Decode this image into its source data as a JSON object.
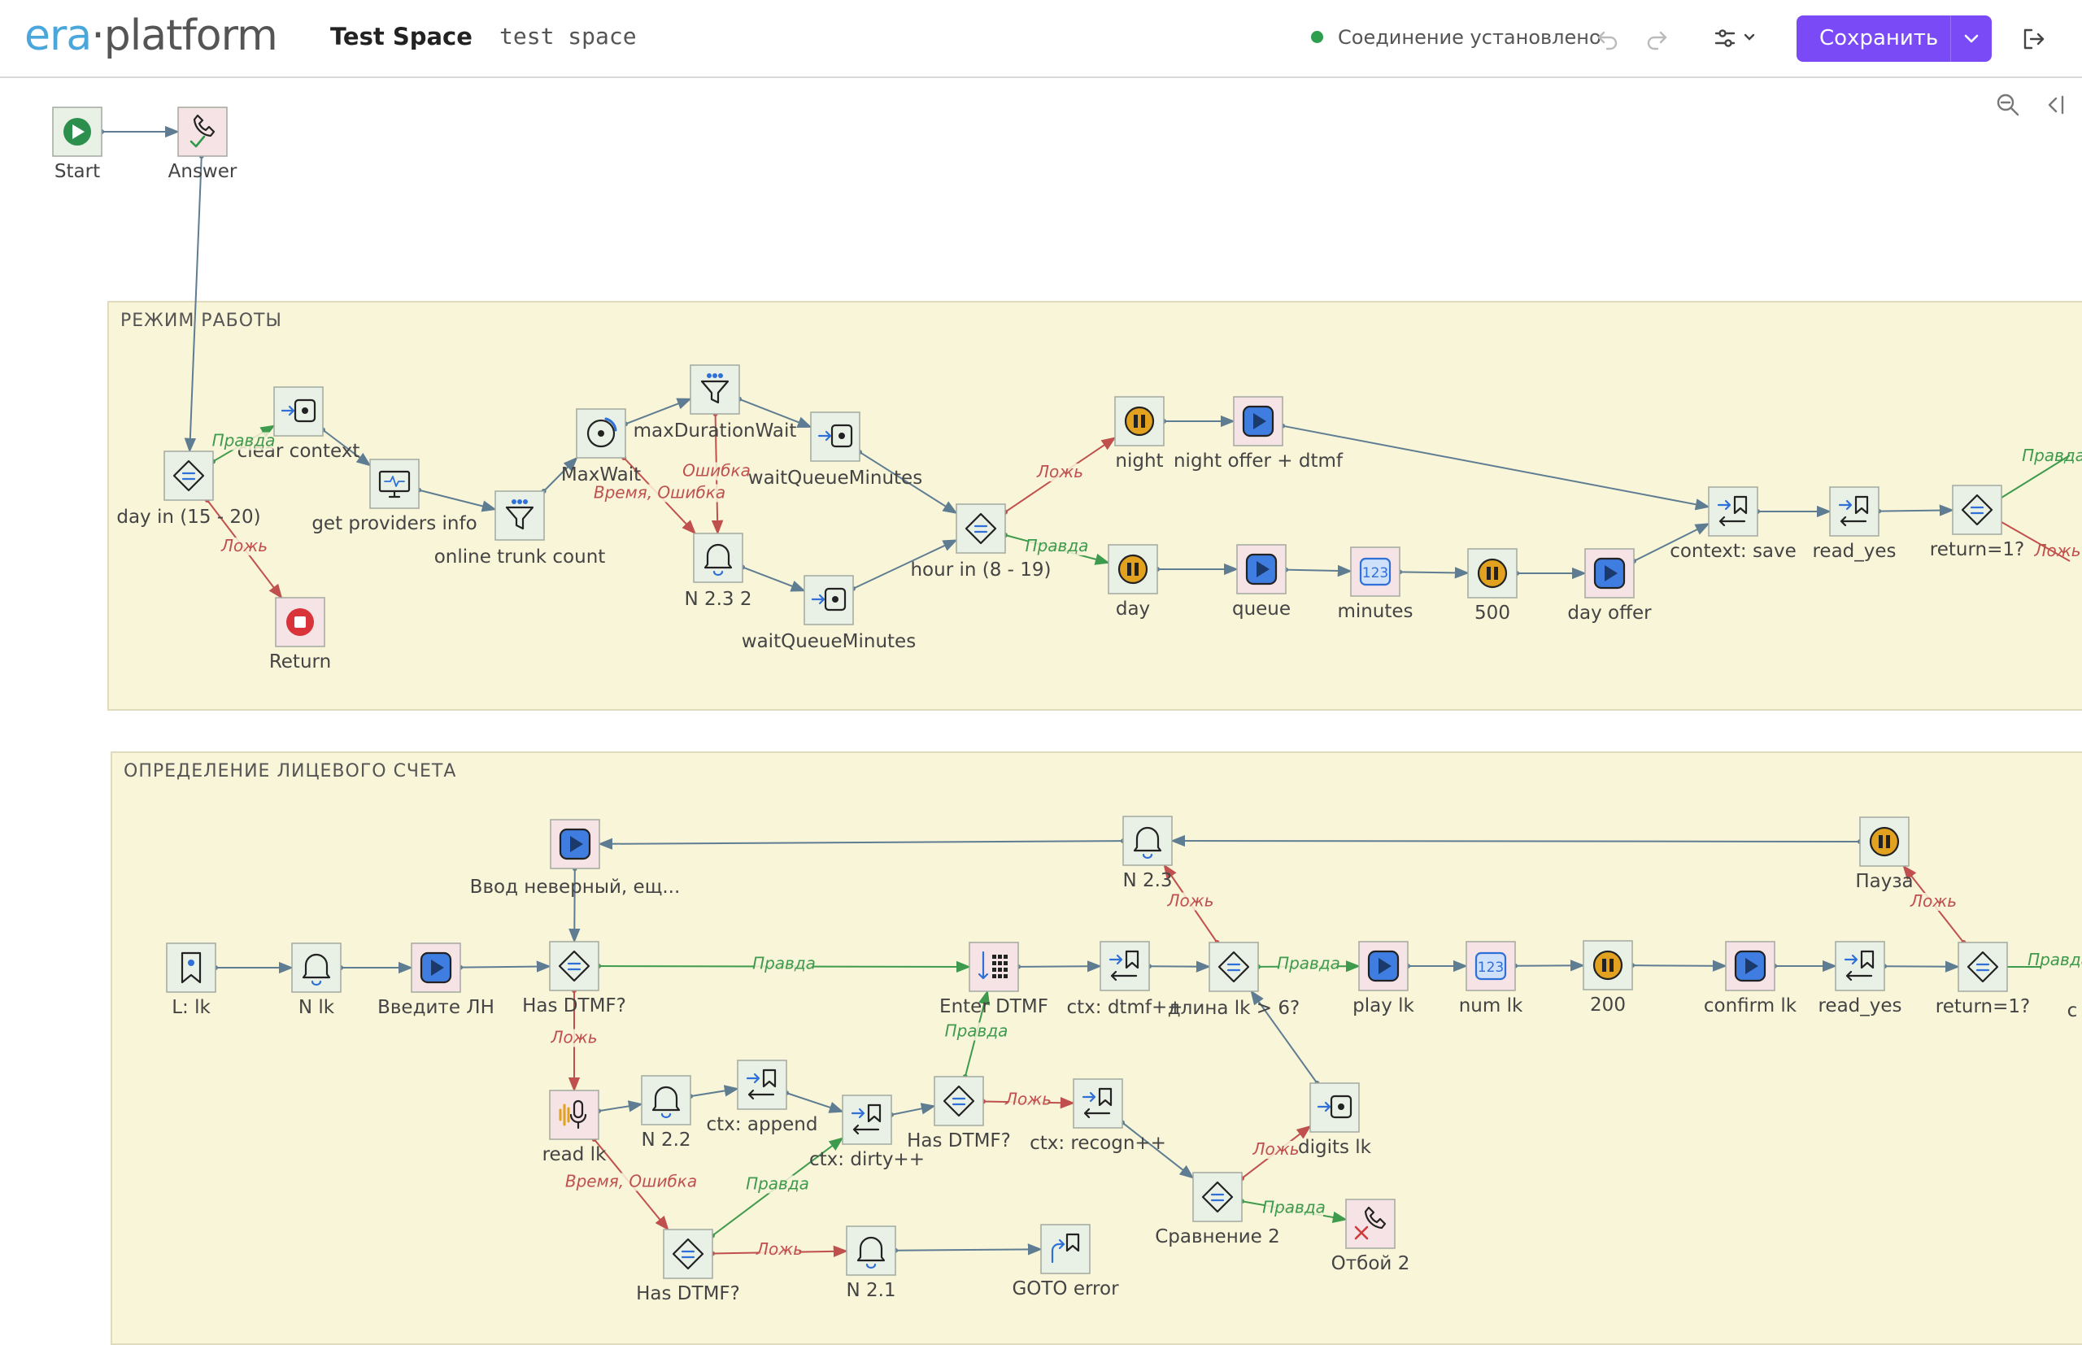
{
  "header": {
    "logo_part1": "era",
    "logo_sep": "·",
    "logo_part2": "platform",
    "title": "Test Space",
    "subtitle": "test space",
    "status_text": "Соединение установлено",
    "save_label": "Сохранить"
  },
  "zones": {
    "work_mode": "РЕЖИМ РАБОТЫ",
    "account": "ОПРЕДЕЛЕНИЕ ЛИЦЕВОГО СЧЕТА"
  },
  "colors": {
    "edge": "#5f7d92",
    "true": "#3e9a4c",
    "false": "#c0504d",
    "accent": "#7a4af7",
    "zone": "#f9f5d9"
  },
  "nodes": [
    {
      "id": "start",
      "label": "Start",
      "icon": "play-circle-icon"
    },
    {
      "id": "answer",
      "label": "Answer",
      "icon": "phone-check-icon"
    },
    {
      "id": "day1520",
      "label": "day in (15 - 20)",
      "icon": "condition-icon"
    },
    {
      "id": "clearctx",
      "label": "clear context",
      "icon": "assign-icon"
    },
    {
      "id": "return",
      "label": "Return",
      "icon": "stop-icon"
    },
    {
      "id": "getprov",
      "label": "get providers info",
      "icon": "monitor-icon"
    },
    {
      "id": "onlinetrunk",
      "label": "online trunk count",
      "icon": "filter-icon"
    },
    {
      "id": "maxwait",
      "label": "MaxWait",
      "icon": "refresh-icon"
    },
    {
      "id": "maxdur",
      "label": "maxDurationWait",
      "icon": "filter-icon"
    },
    {
      "id": "waitq1",
      "label": "waitQueueMinutes",
      "icon": "assign-icon"
    },
    {
      "id": "n232",
      "label": "N 2.3 2",
      "icon": "bell-icon"
    },
    {
      "id": "waitq2",
      "label": "waitQueueMinutes",
      "icon": "assign-icon"
    },
    {
      "id": "hour",
      "label": "hour in (8 - 19)",
      "icon": "condition-icon"
    },
    {
      "id": "night",
      "label": "night",
      "icon": "pause-icon"
    },
    {
      "id": "nightoffer",
      "label": "night offer + dtmf",
      "icon": "play-icon"
    },
    {
      "id": "day",
      "label": "day",
      "icon": "pause-icon"
    },
    {
      "id": "queue",
      "label": "queue",
      "icon": "play-icon"
    },
    {
      "id": "minutes",
      "label": "minutes",
      "icon": "number-icon"
    },
    {
      "id": "p500",
      "label": "500",
      "icon": "pause-icon"
    },
    {
      "id": "dayoffer",
      "label": "day offer",
      "icon": "play-icon"
    },
    {
      "id": "ctxsave",
      "label": "context: save",
      "icon": "context-icon"
    },
    {
      "id": "readyes1",
      "label": "read_yes",
      "icon": "context-icon"
    },
    {
      "id": "return1a",
      "label": "return=1?",
      "icon": "condition-icon"
    },
    {
      "id": "vvod",
      "label": "Ввод неверный, ещ...",
      "icon": "play-icon"
    },
    {
      "id": "n23",
      "label": "N 2.3",
      "icon": "bell-icon"
    },
    {
      "id": "pauza",
      "label": "Пауза",
      "icon": "pause-icon"
    },
    {
      "id": "llk",
      "label": "L: lk",
      "icon": "bookmark-icon"
    },
    {
      "id": "nlk",
      "label": "N lk",
      "icon": "bell-icon"
    },
    {
      "id": "vvedite",
      "label": "Введите ЛН",
      "icon": "play-icon"
    },
    {
      "id": "hasdtmf1",
      "label": "Has DTMF?",
      "icon": "condition-icon"
    },
    {
      "id": "enterdtmf",
      "label": "Enter DTMF",
      "icon": "keypad-icon"
    },
    {
      "id": "ctxdtmf",
      "label": "ctx: dtmf++",
      "icon": "context-icon"
    },
    {
      "id": "dlina",
      "label": "длина lk > 6?",
      "icon": "condition-icon"
    },
    {
      "id": "playlk",
      "label": "play lk",
      "icon": "play-icon"
    },
    {
      "id": "numlk",
      "label": "num lk",
      "icon": "number-icon"
    },
    {
      "id": "p200",
      "label": "200",
      "icon": "pause-icon"
    },
    {
      "id": "confirmlk",
      "label": "confirm lk",
      "icon": "play-icon"
    },
    {
      "id": "readyes2",
      "label": "read_yes",
      "icon": "context-icon"
    },
    {
      "id": "return1b",
      "label": "return=1?",
      "icon": "condition-icon"
    },
    {
      "id": "readlk",
      "label": "read lk",
      "icon": "mic-icon"
    },
    {
      "id": "n22",
      "label": "N 2.2",
      "icon": "bell-icon"
    },
    {
      "id": "ctxappend",
      "label": "ctx: append",
      "icon": "context-icon"
    },
    {
      "id": "ctxdirty",
      "label": "ctx: dirty++",
      "icon": "context-icon"
    },
    {
      "id": "hasdtmf2",
      "label": "Has DTMF?",
      "icon": "condition-icon"
    },
    {
      "id": "ctxrecogn",
      "label": "ctx: recogn++",
      "icon": "context-icon"
    },
    {
      "id": "digitslk",
      "label": "digits lk",
      "icon": "assign-icon"
    },
    {
      "id": "sravn2",
      "label": "Сравнение 2",
      "icon": "condition-icon"
    },
    {
      "id": "otboi2",
      "label": "Отбой 2",
      "icon": "phone-x-icon"
    },
    {
      "id": "hasdtmf3",
      "label": "Has DTMF?",
      "icon": "condition-icon"
    },
    {
      "id": "n21",
      "label": "N 2.1",
      "icon": "bell-icon"
    },
    {
      "id": "gotoerror",
      "label": "GOTO error",
      "icon": "goto-icon"
    }
  ],
  "edge_labels": {
    "true": "Правда",
    "false": "Ложь",
    "error": "Ошибка",
    "time_error": "Время, Ошибка",
    "partial_c": "с"
  },
  "edges": [
    {
      "from": "start",
      "to": "answer",
      "type": "normal"
    },
    {
      "from": "answer",
      "to": "day1520",
      "type": "normal"
    },
    {
      "from": "day1520",
      "to": "clearctx",
      "type": "true",
      "label": "Правда"
    },
    {
      "from": "day1520",
      "to": "return",
      "type": "false",
      "label": "Ложь"
    },
    {
      "from": "clearctx",
      "to": "getprov",
      "type": "normal"
    },
    {
      "from": "getprov",
      "to": "onlinetrunk",
      "type": "normal"
    },
    {
      "from": "onlinetrunk",
      "to": "maxwait",
      "type": "normal"
    },
    {
      "from": "maxwait",
      "to": "maxdur",
      "type": "normal"
    },
    {
      "from": "maxwait",
      "to": "n232",
      "type": "false",
      "label": "Время, Ошибка"
    },
    {
      "from": "maxdur",
      "to": "waitq1",
      "type": "normal"
    },
    {
      "from": "maxdur",
      "to": "n232",
      "type": "false",
      "label": "Ошибка"
    },
    {
      "from": "n232",
      "to": "waitq2",
      "type": "normal"
    },
    {
      "from": "waitq1",
      "to": "hour",
      "type": "normal"
    },
    {
      "from": "waitq2",
      "to": "hour",
      "type": "normal"
    },
    {
      "from": "hour",
      "to": "night",
      "type": "false",
      "label": "Ложь"
    },
    {
      "from": "hour",
      "to": "day",
      "type": "true",
      "label": "Правда"
    },
    {
      "from": "night",
      "to": "nightoffer",
      "type": "normal"
    },
    {
      "from": "nightoffer",
      "to": "ctxsave",
      "type": "normal"
    },
    {
      "from": "day",
      "to": "queue",
      "type": "normal"
    },
    {
      "from": "queue",
      "to": "minutes",
      "type": "normal"
    },
    {
      "from": "minutes",
      "to": "p500",
      "type": "normal"
    },
    {
      "from": "p500",
      "to": "dayoffer",
      "type": "normal"
    },
    {
      "from": "dayoffer",
      "to": "ctxsave",
      "type": "normal"
    },
    {
      "from": "ctxsave",
      "to": "readyes1",
      "type": "normal"
    },
    {
      "from": "readyes1",
      "to": "return1a",
      "type": "normal"
    },
    {
      "from": "llk",
      "to": "nlk",
      "type": "normal"
    },
    {
      "from": "nlk",
      "to": "vvedite",
      "type": "normal"
    },
    {
      "from": "vvedite",
      "to": "hasdtmf1",
      "type": "normal"
    },
    {
      "from": "hasdtmf1",
      "to": "enterdtmf",
      "type": "true",
      "label": "Правда"
    },
    {
      "from": "hasdtmf1",
      "to": "readlk",
      "type": "false",
      "label": "Ложь"
    },
    {
      "from": "vvod",
      "to": "hasdtmf1",
      "type": "normal"
    },
    {
      "from": "n23",
      "to": "vvod",
      "type": "normal"
    },
    {
      "from": "pauza",
      "to": "n23",
      "type": "normal"
    },
    {
      "from": "enterdtmf",
      "to": "ctxdtmf",
      "type": "normal"
    },
    {
      "from": "ctxdtmf",
      "to": "dlina",
      "type": "normal"
    },
    {
      "from": "dlina",
      "to": "n23",
      "type": "false",
      "label": "Ложь"
    },
    {
      "from": "dlina",
      "to": "playlk",
      "type": "true",
      "label": "Правда"
    },
    {
      "from": "playlk",
      "to": "numlk",
      "type": "normal"
    },
    {
      "from": "numlk",
      "to": "p200",
      "type": "normal"
    },
    {
      "from": "p200",
      "to": "confirmlk",
      "type": "normal"
    },
    {
      "from": "confirmlk",
      "to": "readyes2",
      "type": "normal"
    },
    {
      "from": "readyes2",
      "to": "return1b",
      "type": "normal"
    },
    {
      "from": "return1b",
      "to": "pauza",
      "type": "false",
      "label": "Ложь"
    },
    {
      "from": "readlk",
      "to": "n22",
      "type": "normal"
    },
    {
      "from": "n22",
      "to": "ctxappend",
      "type": "normal"
    },
    {
      "from": "ctxappend",
      "to": "ctxdirty",
      "type": "normal"
    },
    {
      "from": "ctxdirty",
      "to": "hasdtmf2",
      "type": "normal"
    },
    {
      "from": "hasdtmf2",
      "to": "enterdtmf",
      "type": "true",
      "label": "Правда"
    },
    {
      "from": "hasdtmf2",
      "to": "ctxrecogn",
      "type": "false",
      "label": "Ложь"
    },
    {
      "from": "ctxrecogn",
      "to": "sravn2",
      "type": "normal"
    },
    {
      "from": "sravn2",
      "to": "digitslk",
      "type": "false",
      "label": "Ложь"
    },
    {
      "from": "sravn2",
      "to": "otboi2",
      "type": "true",
      "label": "Правда"
    },
    {
      "from": "digitslk",
      "to": "dlina",
      "type": "normal"
    },
    {
      "from": "readlk",
      "to": "hasdtmf3",
      "type": "false",
      "label": "Время, Ошибка"
    },
    {
      "from": "hasdtmf3",
      "to": "ctxdirty",
      "type": "true",
      "label": "Правда"
    },
    {
      "from": "hasdtmf3",
      "to": "n21",
      "type": "false",
      "label": "Ложь"
    },
    {
      "from": "n21",
      "to": "gotoerror",
      "type": "normal"
    }
  ]
}
